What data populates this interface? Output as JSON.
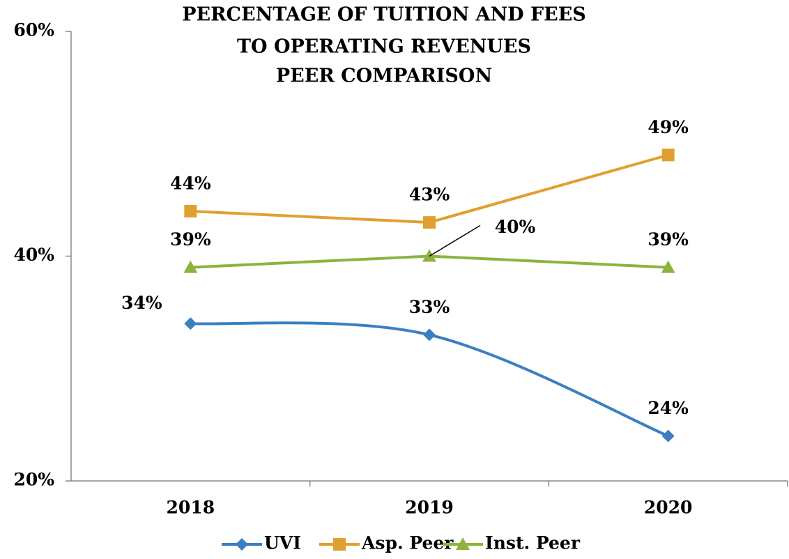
{
  "chart_data": {
    "type": "line",
    "title": [
      "PERCENTAGE OF TUITION AND FEES",
      "TO OPERATING REVENUES",
      "PEER COMPARISON"
    ],
    "categories": [
      "2018",
      "2019",
      "2020"
    ],
    "series": [
      {
        "name": "UVI",
        "color": "#3b7fc1",
        "marker": "diamond",
        "smooth": true,
        "values": [
          34,
          33,
          24
        ],
        "value_labels": [
          "34%",
          "33%",
          "24%"
        ]
      },
      {
        "name": "Asp. Peer",
        "color": "#e0a030",
        "marker": "square",
        "smooth": false,
        "values": [
          44,
          43,
          49
        ],
        "value_labels": [
          "44%",
          "43%",
          "49%"
        ]
      },
      {
        "name": "Inst. Peer",
        "color": "#8db33e",
        "marker": "triangle",
        "smooth": false,
        "values": [
          39,
          40,
          39
        ],
        "value_labels": [
          "39%",
          "40%",
          "39%"
        ]
      }
    ],
    "ylim": [
      20,
      60
    ],
    "yticks": [
      {
        "value": 20,
        "label": "20%"
      },
      {
        "value": 40,
        "label": "40%"
      },
      {
        "value": 60,
        "label": "60%"
      }
    ],
    "grid": false,
    "legend": "bottom"
  }
}
